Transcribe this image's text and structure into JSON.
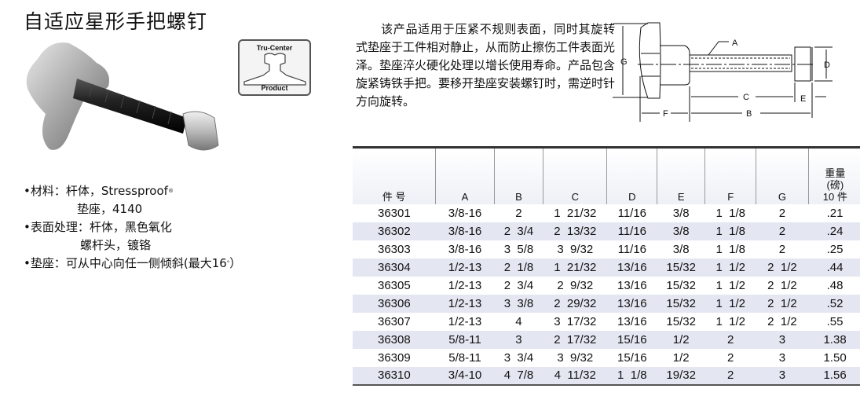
{
  "title": "自适应星形手把螺钉",
  "logo": {
    "top": "Tru-Center",
    "bottom": "Product"
  },
  "specs": [
    {
      "text": "•材料：杆体，Stressproof",
      "sup": "®"
    },
    {
      "text": "垫座，4140"
    },
    {
      "text": "•表面处理：杆体，黑色氧化"
    },
    {
      "text": "螺杆头，镀铬"
    },
    {
      "text": "•垫座：可从中心向任一侧倾斜(最大16",
      "sup": "°",
      "tail": "）"
    }
  ],
  "description": "该产品适用于压紧不规则表面，同时其旋转式垫座于工件相对静止，从而防止擦伤工件表面光泽。垫座淬火硬化处理以增长使用寿命。产品包含旋紧铸铁手把。要移开垫座安装螺钉时，需逆时针方向旋转。",
  "diagram_labels": {
    "A": "A",
    "B": "B",
    "C": "C",
    "D": "D",
    "E": "E",
    "F": "F",
    "G": "G"
  },
  "table": {
    "headers": [
      "件 号",
      "A",
      "B",
      "C",
      "D",
      "E",
      "F",
      "G",
      [
        "重量",
        "(磅)",
        "10 件"
      ]
    ],
    "rows": [
      [
        "36301",
        "3/8-16",
        "2",
        "1  21/32",
        "11/16",
        "3/8",
        "1  1/8",
        "2",
        ".21"
      ],
      [
        "36302",
        "3/8-16",
        "2  3/4",
        "2  13/32",
        "11/16",
        "3/8",
        "1  1/8",
        "2",
        ".24"
      ],
      [
        "36303",
        "3/8-16",
        "3  5/8",
        "3  9/32",
        "11/16",
        "3/8",
        "1  1/8",
        "2",
        ".25"
      ],
      [
        "36304",
        "1/2-13",
        "2  1/8",
        "1  21/32",
        "13/16",
        "15/32",
        "1  1/2",
        "2  1/2",
        ".44"
      ],
      [
        "36305",
        "1/2-13",
        "2  3/4",
        "2  9/32",
        "13/16",
        "15/32",
        "1  1/2",
        "2  1/2",
        ".48"
      ],
      [
        "36306",
        "1/2-13",
        "3  3/8",
        "2  29/32",
        "13/16",
        "15/32",
        "1  1/2",
        "2  1/2",
        ".52"
      ],
      [
        "36307",
        "1/2-13",
        "4",
        "3  17/32",
        "13/16",
        "15/32",
        "1  1/2",
        "2  1/2",
        ".55"
      ],
      [
        "36308",
        "5/8-11",
        "3",
        "2  17/32",
        "15/16",
        "1/2",
        "2",
        "3",
        "1.38"
      ],
      [
        "36309",
        "5/8-11",
        "3  3/4",
        "3  9/32",
        "15/16",
        "1/2",
        "2",
        "3",
        "1.50"
      ],
      [
        "36310",
        "3/4-10",
        "4  7/8",
        "4  11/32",
        "1  1/8",
        "19/32",
        "2",
        "3",
        "1.56"
      ]
    ]
  }
}
